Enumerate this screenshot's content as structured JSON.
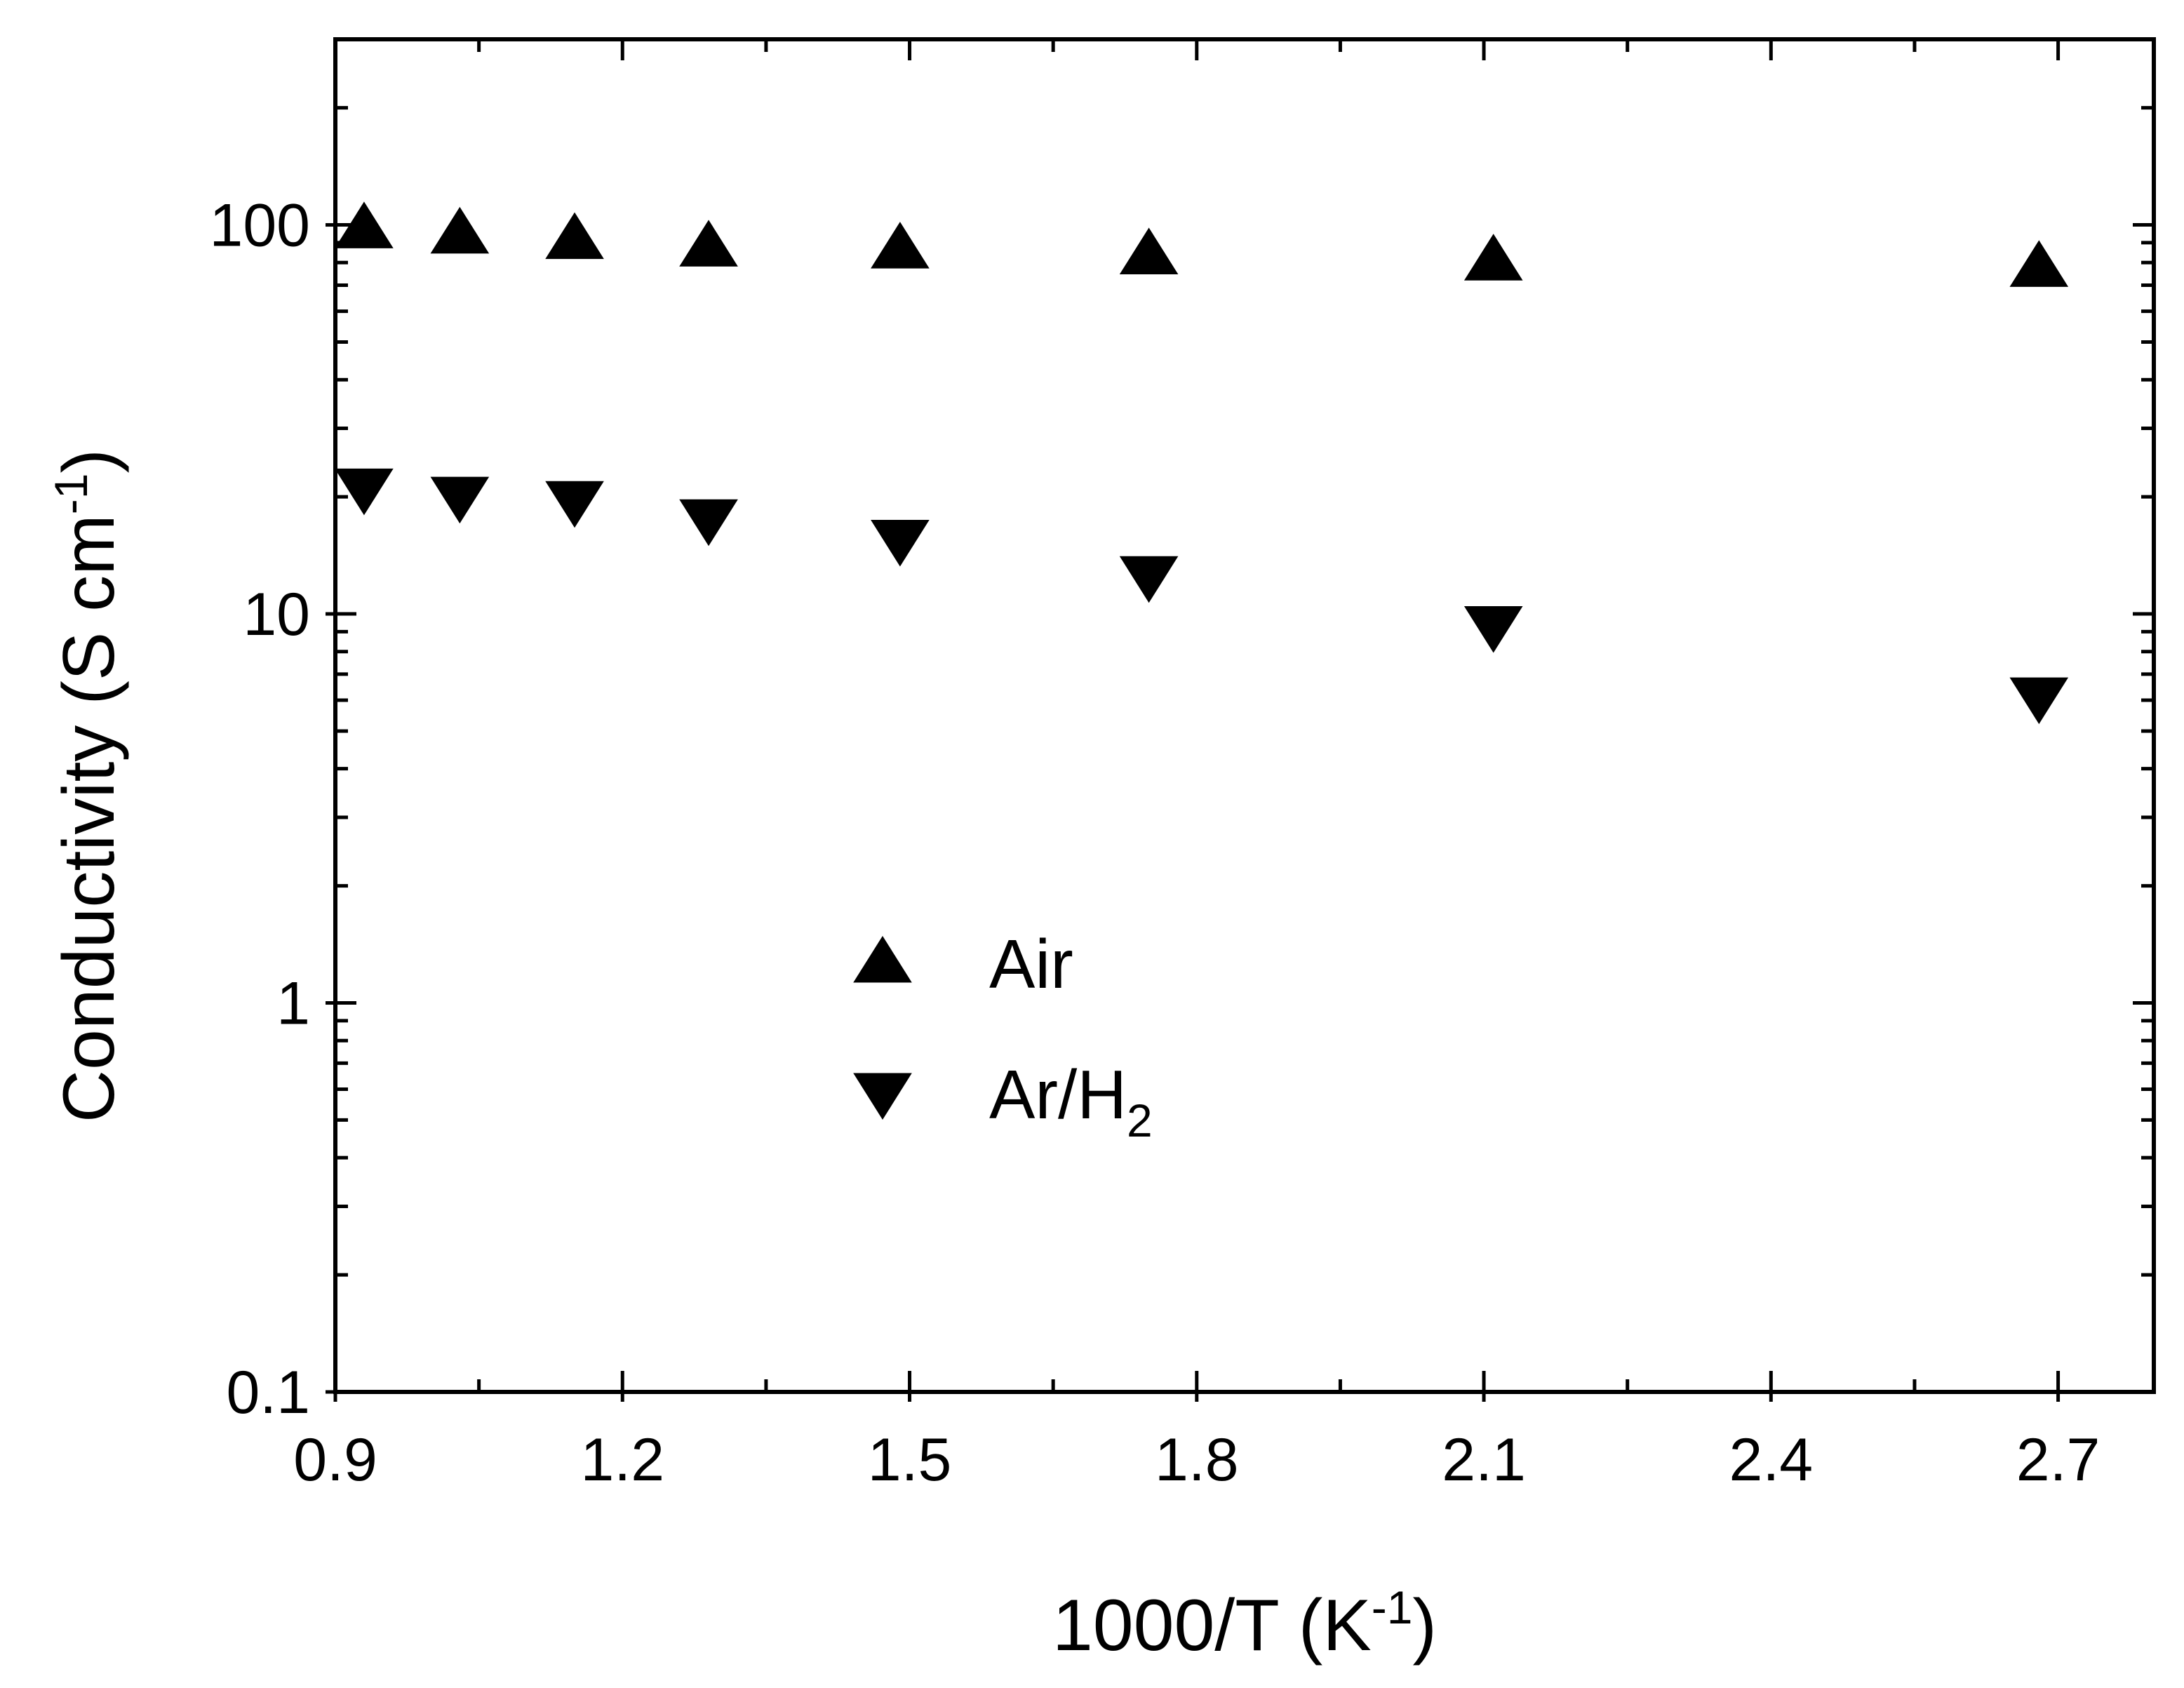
{
  "chart_data": {
    "type": "scatter",
    "title": "",
    "xlabel": {
      "main": "1000/T (K",
      "sup": "-1",
      "close": ")"
    },
    "ylabel": {
      "main": "Conductivity (S cm",
      "sup": "-1",
      "close": ")"
    },
    "xlim": [
      0.9,
      2.8
    ],
    "ylim": [
      0.1,
      300
    ],
    "yscale": "log",
    "x_ticks": [
      0.9,
      1.2,
      1.5,
      1.8,
      2.1,
      2.4,
      2.7
    ],
    "x_tick_labels": [
      "0.9",
      "1.2",
      "1.5",
      "1.8",
      "2.1",
      "2.4",
      "2.7"
    ],
    "x_minor_ticks": [
      1.05,
      1.35,
      1.65,
      1.95,
      2.25,
      2.55
    ],
    "y_ticks": [
      0.1,
      1,
      10,
      100
    ],
    "y_tick_labels": [
      "0.1",
      "1",
      "10",
      "100"
    ],
    "grid": false,
    "legend": {
      "position": "center"
    },
    "series": [
      {
        "name": "Air",
        "marker": "triangle-up",
        "color": "#000000",
        "x": [
          0.93,
          1.03,
          1.15,
          1.29,
          1.49,
          1.75,
          2.11,
          2.68
        ],
        "y": [
          98,
          95,
          92,
          88,
          87,
          84,
          81,
          78
        ]
      },
      {
        "name_main": "Ar/H",
        "name_sub": "2",
        "marker": "triangle-down",
        "color": "#000000",
        "x": [
          0.93,
          1.03,
          1.15,
          1.29,
          1.49,
          1.75,
          2.11,
          2.68
        ],
        "y": [
          21,
          20,
          19.5,
          17.5,
          15.5,
          12.5,
          9.3,
          6.1
        ]
      }
    ]
  }
}
